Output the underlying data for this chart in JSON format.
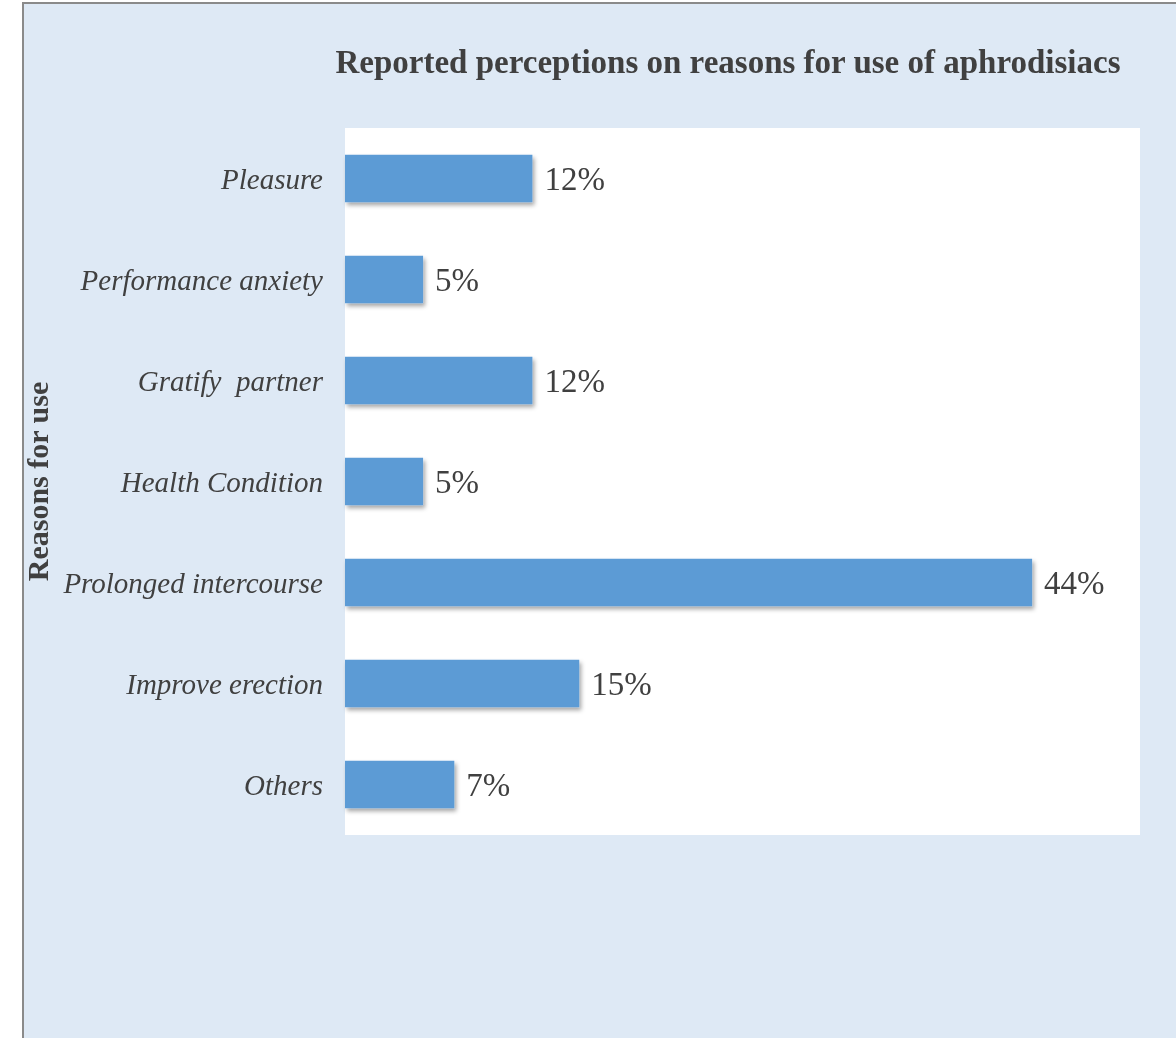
{
  "chart_data": {
    "type": "bar",
    "orientation": "horizontal",
    "title": "Reported perceptions on reasons for use of aphrodisiacs",
    "ylabel": "Reasons for use",
    "categories": [
      "Pleasure",
      "Performance anxiety",
      "Gratify  partner",
      "Health Condition",
      "Prolonged intercourse",
      "Improve erection",
      "Others"
    ],
    "values": [
      12,
      5,
      12,
      5,
      44,
      15,
      7
    ],
    "value_labels": [
      "12%",
      "5%",
      "12%",
      "5%",
      "44%",
      "15%",
      "7%"
    ],
    "color": "#5b9bd5",
    "grid": false
  }
}
